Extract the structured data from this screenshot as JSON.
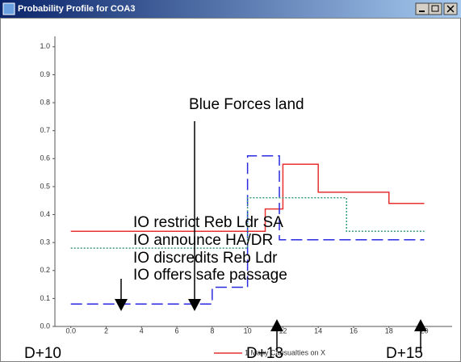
{
  "window": {
    "title": "Probability Profile for COA3"
  },
  "chart_data": {
    "type": "step",
    "xlim": [
      -0.9,
      21.3
    ],
    "ylim": [
      0,
      1.04
    ],
    "xticks": [
      {
        "value": 0,
        "label": "0.0"
      },
      2,
      4,
      6,
      8,
      10,
      12,
      14,
      16,
      18,
      20
    ],
    "yticks": [
      {
        "value": 0,
        "label": "0.0"
      },
      0.1,
      0.2,
      0.3,
      0.4,
      0.5,
      0.6,
      0.7,
      0.8,
      0.9,
      {
        "value": 1,
        "label": "1.0"
      }
    ],
    "series": [
      {
        "name": "1 Many Causualties on X",
        "color": "#e83030",
        "dash": "solid",
        "x": [
          0,
          11,
          12,
          14,
          18,
          20
        ],
        "values": [
          0.34,
          0.42,
          0.58,
          0.48,
          0.44,
          0.44
        ]
      },
      {
        "color": "#2a2ae0",
        "dash": "dashed",
        "x": [
          0,
          8,
          10,
          11.8,
          20
        ],
        "values": [
          0.08,
          0.14,
          0.61,
          0.31,
          0.31
        ]
      },
      {
        "color": "#3a9a7a",
        "dash": "dotted",
        "x": [
          0,
          10,
          15.6,
          20
        ],
        "values": [
          0.28,
          0.46,
          0.34,
          0.34
        ]
      }
    ],
    "annotations": [
      "Blue Forces land",
      "IO restrict Reb Ldr SA",
      "IO announce HA/DR",
      "IO discredits Reb Ldr",
      "IO offers safe passage",
      "D+10",
      "D+13",
      "D+15"
    ]
  }
}
